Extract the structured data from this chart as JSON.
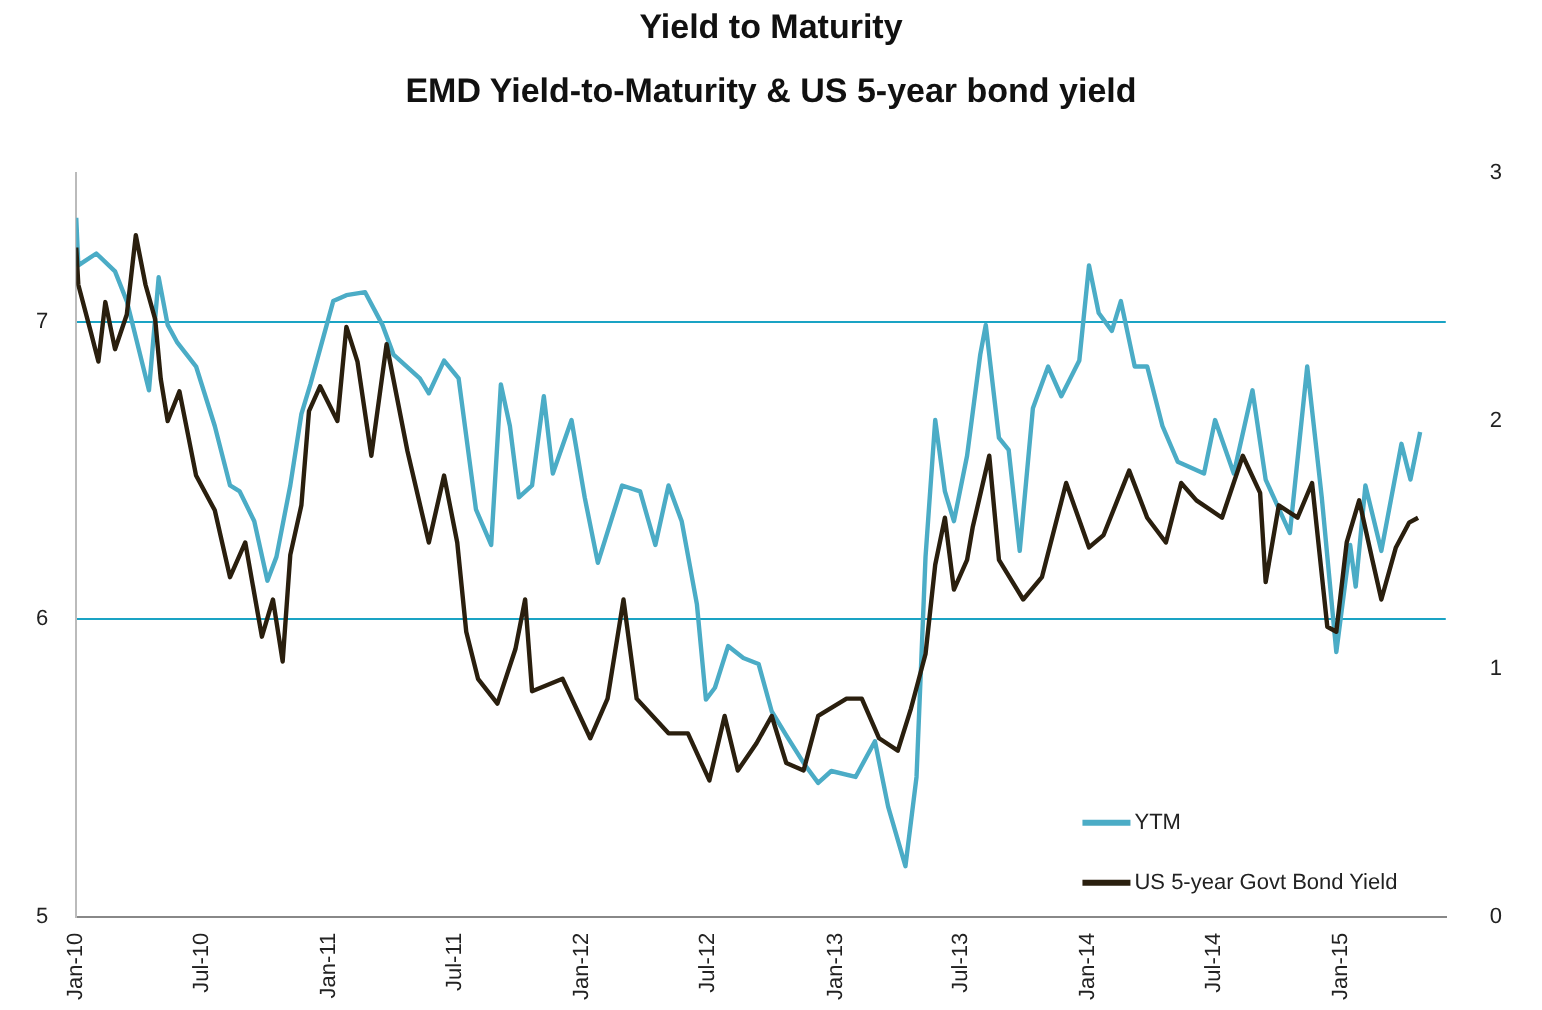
{
  "chart_data": {
    "type": "line",
    "title": "Yield to Maturity",
    "subtitle": "EMD Yield-to-Maturity & US 5-year bond yield",
    "xlim": [
      "2010-01-01",
      "2015-06-01"
    ],
    "xticks": [
      {
        "value": "2010-01-01",
        "label": "Jan-10"
      },
      {
        "value": "2010-07-01",
        "label": "Jul-10"
      },
      {
        "value": "2011-01-01",
        "label": "Jan-11"
      },
      {
        "value": "2011-07-01",
        "label": "Jul-11"
      },
      {
        "value": "2012-01-01",
        "label": "Jan-12"
      },
      {
        "value": "2012-07-01",
        "label": "Jul-12"
      },
      {
        "value": "2013-01-01",
        "label": "Jan-13"
      },
      {
        "value": "2013-07-01",
        "label": "Jul-13"
      },
      {
        "value": "2014-01-01",
        "label": "Jan-14"
      },
      {
        "value": "2014-07-01",
        "label": "Jul-14"
      },
      {
        "value": "2015-01-01",
        "label": "Jan-15"
      }
    ],
    "ylim": [
      5,
      7.5
    ],
    "yticks": [
      5,
      6,
      7
    ],
    "y2lim": [
      0,
      3
    ],
    "y2ticks": [
      0,
      1,
      2,
      3
    ],
    "grid": "y",
    "legend": "bottom right",
    "marker": "none",
    "line_style": "solid",
    "series": [
      {
        "name": "YTM",
        "color": "#4bacc6",
        "x": [
          "2010-01-01",
          "2010-01-04",
          "2010-01-30",
          "2010-02-26",
          "2010-03-15",
          "2010-04-16",
          "2010-04-30",
          "2010-05-13",
          "2010-05-27",
          "2010-06-23",
          "2010-07-20",
          "2010-08-11",
          "2010-08-25",
          "2010-09-15",
          "2010-10-04",
          "2010-10-17",
          "2010-11-06",
          "2010-11-22",
          "2010-12-05",
          "2011-01-07",
          "2011-01-26",
          "2011-02-22",
          "2011-03-19",
          "2011-04-04",
          "2011-05-12",
          "2011-05-25",
          "2011-06-16",
          "2011-07-07",
          "2011-08-01",
          "2011-08-23",
          "2011-09-06",
          "2011-09-19",
          "2011-10-02",
          "2011-10-21",
          "2011-11-07",
          "2011-11-20",
          "2011-12-17",
          "2012-01-05",
          "2012-01-24",
          "2012-02-28",
          "2012-03-25",
          "2012-04-16",
          "2012-05-05",
          "2012-05-24",
          "2012-06-15",
          "2012-06-28",
          "2012-07-11",
          "2012-07-30",
          "2012-08-21",
          "2012-09-12",
          "2012-10-01",
          "2012-10-22",
          "2012-11-18",
          "2012-12-07",
          "2012-12-26",
          "2013-01-30",
          "2013-02-27",
          "2013-03-18",
          "2013-04-12",
          "2013-04-28",
          "2013-05-11",
          "2013-05-25",
          "2013-06-08",
          "2013-06-21",
          "2013-07-10",
          "2013-07-29",
          "2013-08-06",
          "2013-08-25",
          "2013-09-08",
          "2013-09-24",
          "2013-10-13",
          "2013-11-04",
          "2013-11-23",
          "2013-12-19",
          "2014-01-02",
          "2014-01-16",
          "2014-02-04",
          "2014-02-17",
          "2014-03-09",
          "2014-03-27",
          "2014-04-18",
          "2014-05-10",
          "2014-06-17",
          "2014-07-03",
          "2014-07-30",
          "2014-08-26",
          "2014-09-14",
          "2014-10-19",
          "2014-11-13",
          "2014-12-04",
          "2014-12-25",
          "2015-01-14",
          "2015-01-22",
          "2015-02-05",
          "2015-02-28",
          "2015-03-29",
          "2015-04-11",
          "2015-04-25"
        ],
        "values": [
          7.35,
          7.19,
          7.23,
          7.17,
          7.07,
          6.77,
          7.15,
          6.99,
          6.93,
          6.85,
          6.65,
          6.45,
          6.43,
          6.33,
          6.13,
          6.21,
          6.45,
          6.69,
          6.79,
          7.07,
          7.09,
          7.1,
          6.99,
          6.89,
          6.81,
          6.76,
          6.87,
          6.81,
          6.37,
          6.25,
          6.79,
          6.65,
          6.41,
          6.45,
          6.75,
          6.49,
          6.67,
          6.41,
          6.19,
          6.45,
          6.43,
          6.25,
          6.45,
          6.33,
          6.05,
          5.73,
          5.77,
          5.91,
          5.87,
          5.85,
          5.69,
          5.61,
          5.51,
          5.45,
          5.49,
          5.47,
          5.59,
          5.37,
          5.17,
          5.47,
          6.21,
          6.67,
          6.43,
          6.33,
          6.55,
          6.89,
          6.99,
          6.61,
          6.57,
          6.23,
          6.71,
          6.85,
          6.75,
          6.87,
          7.19,
          7.03,
          6.97,
          7.07,
          6.85,
          6.85,
          6.65,
          6.53,
          6.49,
          6.67,
          6.49,
          6.77,
          6.47,
          6.29,
          6.85,
          6.41,
          5.89,
          6.25,
          6.11,
          6.45,
          6.23,
          6.59,
          6.47,
          6.63
        ]
      },
      {
        "name": "US 5-year Govt Bond Yield",
        "color": "#2a1f0e",
        "axis": "y2",
        "x": [
          "2010-01-01",
          "2010-01-04",
          "2010-01-22",
          "2010-02-02",
          "2010-02-12",
          "2010-02-26",
          "2010-03-15",
          "2010-03-28",
          "2010-04-11",
          "2010-04-25",
          "2010-05-03",
          "2010-05-13",
          "2010-05-30",
          "2010-06-23",
          "2010-07-20",
          "2010-08-11",
          "2010-09-02",
          "2010-09-26",
          "2010-10-12",
          "2010-10-26",
          "2010-11-06",
          "2010-11-22",
          "2010-12-03",
          "2010-12-19",
          "2011-01-13",
          "2011-01-26",
          "2011-02-11",
          "2011-03-03",
          "2011-03-25",
          "2011-04-24",
          "2011-05-25",
          "2011-06-16",
          "2011-07-05",
          "2011-07-18",
          "2011-08-04",
          "2011-09-01",
          "2011-09-27",
          "2011-10-11",
          "2011-10-21",
          "2011-12-04",
          "2012-01-13",
          "2012-02-07",
          "2012-03-01",
          "2012-03-20",
          "2012-05-05",
          "2012-06-02",
          "2012-07-03",
          "2012-07-25",
          "2012-08-13",
          "2012-09-09",
          "2012-10-01",
          "2012-10-22",
          "2012-11-16",
          "2012-12-07",
          "2013-01-17",
          "2013-02-08",
          "2013-03-05",
          "2013-04-01",
          "2013-04-20",
          "2013-05-11",
          "2013-05-25",
          "2013-06-08",
          "2013-06-21",
          "2013-07-10",
          "2013-07-18",
          "2013-08-11",
          "2013-08-25",
          "2013-09-29",
          "2013-10-26",
          "2013-11-30",
          "2014-01-02",
          "2014-01-23",
          "2014-03-01",
          "2014-03-27",
          "2014-04-23",
          "2014-05-15",
          "2014-06-06",
          "2014-07-13",
          "2014-08-12",
          "2014-09-06",
          "2014-09-14",
          "2014-10-03",
          "2014-10-30",
          "2014-11-20",
          "2014-12-12",
          "2014-12-25",
          "2015-01-09",
          "2015-01-27",
          "2015-02-15",
          "2015-02-28",
          "2015-03-21",
          "2015-04-09",
          "2015-04-22"
        ],
        "values": [
          2.7,
          2.55,
          2.36,
          2.24,
          2.48,
          2.29,
          2.43,
          2.75,
          2.55,
          2.41,
          2.17,
          2.0,
          2.12,
          1.78,
          1.64,
          1.37,
          1.51,
          1.13,
          1.28,
          1.03,
          1.46,
          1.66,
          2.04,
          2.14,
          2.0,
          2.38,
          2.24,
          1.86,
          2.31,
          1.88,
          1.51,
          1.78,
          1.51,
          1.15,
          0.96,
          0.86,
          1.08,
          1.28,
          0.91,
          0.96,
          0.72,
          0.88,
          1.28,
          0.88,
          0.74,
          0.74,
          0.55,
          0.81,
          0.59,
          0.7,
          0.81,
          0.62,
          0.59,
          0.81,
          0.88,
          0.88,
          0.72,
          0.67,
          0.84,
          1.06,
          1.42,
          1.61,
          1.32,
          1.44,
          1.57,
          1.86,
          1.44,
          1.28,
          1.37,
          1.75,
          1.49,
          1.54,
          1.8,
          1.61,
          1.51,
          1.75,
          1.68,
          1.61,
          1.86,
          1.71,
          1.35,
          1.66,
          1.61,
          1.75,
          1.17,
          1.15,
          1.51,
          1.68,
          1.44,
          1.28,
          1.49,
          1.59,
          1.61
        ]
      }
    ]
  }
}
